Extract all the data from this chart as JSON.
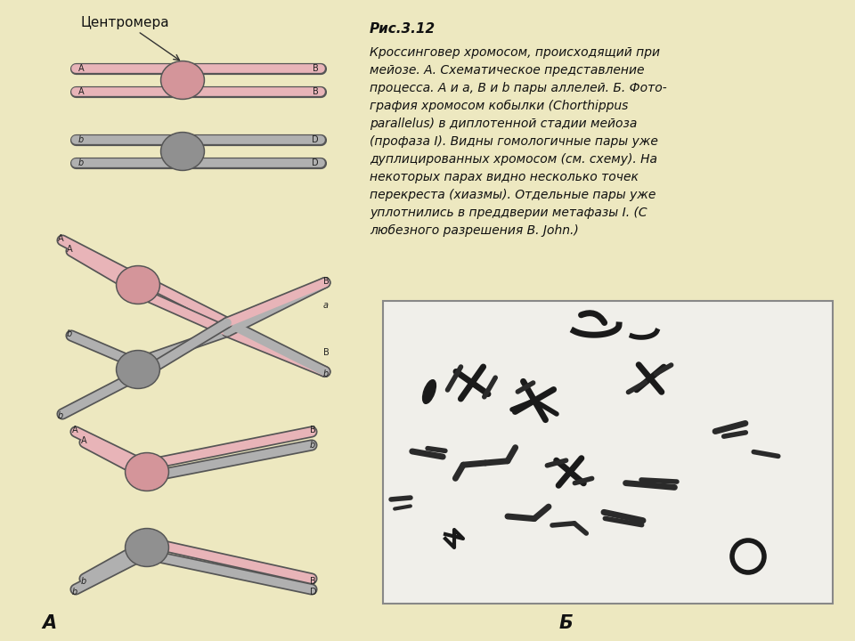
{
  "bg_color": "#ede8c0",
  "title": "Рис.3.12",
  "caption_lines": [
    "Кроссинговер хромосом, происходящий при",
    "мейозе. А. Схематическое представление",
    "процесса. А и а, В и b пары аллелей. Б. Фото-",
    "графия хромосом кобылки (Chorthippus",
    "parallelus) в диплотенной стадии мейоза",
    "(профаза I). Видны гомологичные пары уже",
    "дуплицированных хромосом (см. схему). На",
    "некоторых парах видно несколько точек",
    "перекреста (хиазмы). Отдельные пары уже",
    "уплотнились в преддверии метафазы I. (С",
    "любезного разрешения В. John.)"
  ],
  "centromere_label": "Центромера",
  "label_A": "А",
  "label_B": "Б",
  "pink_color": "#e8b4b8",
  "gray_color": "#b0b0b0",
  "centromere_pink": "#d4959a",
  "centromere_gray": "#909090",
  "outline_color": "#666666",
  "photo_bg": "#f0efea"
}
